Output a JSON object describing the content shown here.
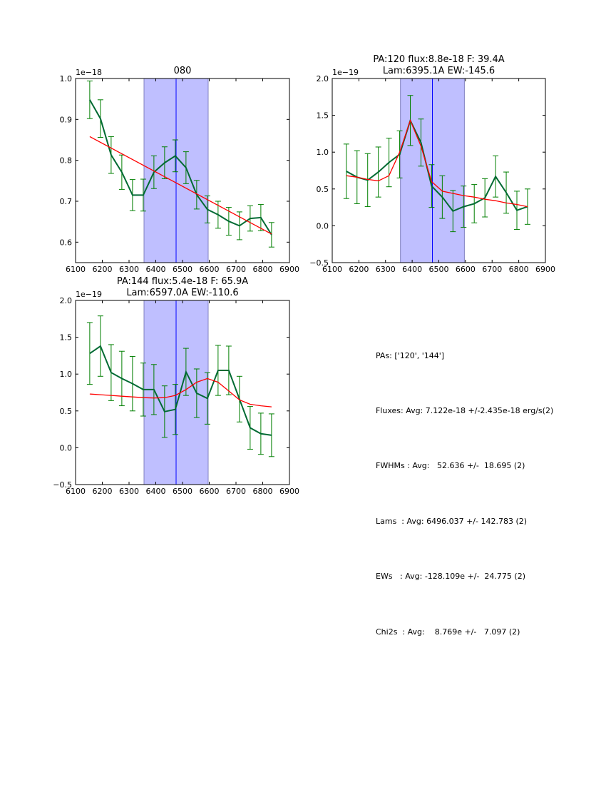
{
  "chart_data": [
    {
      "type": "line",
      "id": "panel-080",
      "title": "080",
      "offset_label": "1e−18",
      "xlabel": "",
      "ylabel": "",
      "xlim": [
        6100,
        6900
      ],
      "ylim": [
        0.55,
        1.0
      ],
      "xticks": [
        6100,
        6200,
        6300,
        6400,
        6500,
        6600,
        6700,
        6800,
        6900
      ],
      "yticks": [
        0.6,
        0.7,
        0.8,
        0.9,
        1.0
      ],
      "ytick_labels": [
        "0.6",
        "0.7",
        "0.8",
        "0.9",
        "1.0"
      ],
      "span": [
        6356,
        6596
      ],
      "vline": 6476,
      "series": [
        {
          "name": "data",
          "kind": "errorbar",
          "x": [
            6153,
            6193,
            6233,
            6273,
            6313,
            6353,
            6393,
            6433,
            6473,
            6513,
            6553,
            6593,
            6633,
            6673,
            6713,
            6753,
            6793,
            6833
          ],
          "y": [
            0.948,
            0.902,
            0.813,
            0.771,
            0.715,
            0.715,
            0.771,
            0.794,
            0.811,
            0.782,
            0.716,
            0.68,
            0.667,
            0.651,
            0.64,
            0.658,
            0.66,
            0.618
          ],
          "err": [
            0.046,
            0.046,
            0.045,
            0.042,
            0.038,
            0.039,
            0.04,
            0.039,
            0.039,
            0.039,
            0.035,
            0.033,
            0.033,
            0.034,
            0.034,
            0.031,
            0.032,
            0.03
          ]
        },
        {
          "name": "fit",
          "kind": "line",
          "x": [
            6153,
            6833
          ],
          "y": [
            0.858,
            0.62
          ]
        }
      ]
    },
    {
      "type": "line",
      "id": "panel-pa120",
      "title": "PA:120 flux:8.8e-18 F: 39.4A\nLam:6395.1A EW:-145.6",
      "title_lines": [
        "PA:120 flux:8.8e-18 F: 39.4A",
        "Lam:6395.1A EW:-145.6"
      ],
      "offset_label": "1e−19",
      "xlabel": "",
      "ylabel": "",
      "xlim": [
        6100,
        6900
      ],
      "ylim": [
        -0.5,
        2.0
      ],
      "xticks": [
        6100,
        6200,
        6300,
        6400,
        6500,
        6600,
        6700,
        6800,
        6900
      ],
      "yticks": [
        -0.5,
        0.0,
        0.5,
        1.0,
        1.5,
        2.0
      ],
      "ytick_labels": [
        "−0.5",
        "0.0",
        "0.5",
        "1.0",
        "1.5",
        "2.0"
      ],
      "span": [
        6356,
        6596
      ],
      "vline": 6476,
      "series": [
        {
          "name": "data",
          "kind": "errorbar",
          "x": [
            6153,
            6193,
            6233,
            6273,
            6313,
            6353,
            6393,
            6433,
            6473,
            6513,
            6553,
            6593,
            6633,
            6673,
            6713,
            6753,
            6793,
            6833
          ],
          "y": [
            0.74,
            0.66,
            0.62,
            0.73,
            0.86,
            0.97,
            1.43,
            1.13,
            0.54,
            0.39,
            0.2,
            0.26,
            0.3,
            0.38,
            0.67,
            0.45,
            0.21,
            0.26
          ],
          "err": [
            0.37,
            0.36,
            0.36,
            0.34,
            0.33,
            0.32,
            0.34,
            0.32,
            0.29,
            0.29,
            0.28,
            0.28,
            0.26,
            0.26,
            0.28,
            0.28,
            0.26,
            0.24
          ]
        },
        {
          "name": "fit",
          "kind": "line",
          "x": [
            6153,
            6193,
            6233,
            6273,
            6313,
            6353,
            6393,
            6433,
            6473,
            6513,
            6553,
            6593,
            6633,
            6673,
            6713,
            6753,
            6793,
            6833
          ],
          "y": [
            0.68,
            0.66,
            0.63,
            0.61,
            0.68,
            1.0,
            1.43,
            1.08,
            0.6,
            0.47,
            0.44,
            0.41,
            0.39,
            0.36,
            0.34,
            0.31,
            0.29,
            0.26
          ]
        }
      ]
    },
    {
      "type": "line",
      "id": "panel-pa144",
      "title": "PA:144 flux:5.4e-18 F: 65.9A\nLam:6597.0A EW:-110.6",
      "title_lines": [
        "PA:144 flux:5.4e-18 F: 65.9A",
        "Lam:6597.0A EW:-110.6"
      ],
      "offset_label": "1e−19",
      "xlabel": "",
      "ylabel": "",
      "xlim": [
        6100,
        6900
      ],
      "ylim": [
        -0.5,
        2.0
      ],
      "xticks": [
        6100,
        6200,
        6300,
        6400,
        6500,
        6600,
        6700,
        6800,
        6900
      ],
      "yticks": [
        -0.5,
        0.0,
        0.5,
        1.0,
        1.5,
        2.0
      ],
      "ytick_labels": [
        "−0.5",
        "0.0",
        "0.5",
        "1.0",
        "1.5",
        "2.0"
      ],
      "span": [
        6356,
        6596
      ],
      "vline": 6476,
      "series": [
        {
          "name": "data",
          "kind": "errorbar",
          "x": [
            6153,
            6193,
            6233,
            6273,
            6313,
            6353,
            6393,
            6433,
            6473,
            6513,
            6553,
            6593,
            6633,
            6673,
            6713,
            6753,
            6793,
            6833
          ],
          "y": [
            1.28,
            1.38,
            1.02,
            0.94,
            0.87,
            0.79,
            0.79,
            0.49,
            0.52,
            1.03,
            0.74,
            0.67,
            1.05,
            1.05,
            0.66,
            0.27,
            0.19,
            0.17
          ],
          "err": [
            0.42,
            0.41,
            0.38,
            0.37,
            0.37,
            0.36,
            0.34,
            0.35,
            0.34,
            0.32,
            0.33,
            0.35,
            0.34,
            0.33,
            0.31,
            0.29,
            0.28,
            0.29
          ]
        },
        {
          "name": "fit",
          "kind": "line",
          "x": [
            6153,
            6193,
            6233,
            6273,
            6313,
            6353,
            6393,
            6433,
            6473,
            6513,
            6553,
            6593,
            6633,
            6673,
            6713,
            6753,
            6793,
            6833
          ],
          "y": [
            0.73,
            0.72,
            0.71,
            0.7,
            0.69,
            0.68,
            0.675,
            0.68,
            0.71,
            0.79,
            0.89,
            0.94,
            0.89,
            0.77,
            0.65,
            0.59,
            0.57,
            0.555
          ]
        }
      ]
    }
  ],
  "colors": {
    "data_line": "#006a33",
    "errorbar": "#007f00",
    "fit_line": "#ff0000",
    "span_fill": "#bfbfff",
    "span_edge": "#8080c0",
    "vline": "#0000ff"
  },
  "summary": {
    "lines": [
      "PAs: ['120', '144']",
      "Fluxes: Avg: 7.122e-18 +/-2.435e-18 erg/s(2)",
      "FWHMs : Avg:   52.636 +/-  18.695 (2)",
      "Lams  : Avg: 6496.037 +/- 142.783 (2)",
      "EWs   : Avg: -128.109e +/-  24.775 (2)",
      "Chi2s  : Avg:    8.769e +/-   7.097 (2)"
    ]
  }
}
